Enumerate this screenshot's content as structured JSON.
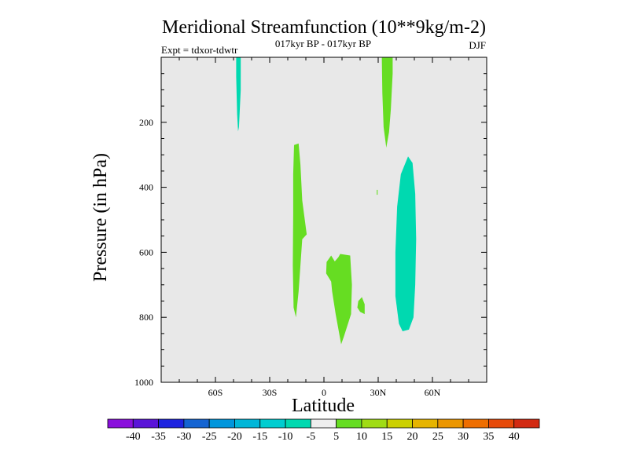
{
  "chart_data": {
    "type": "contour",
    "title": "Meridional Streamfunction (10**9kg/m-2)",
    "subtitle_center": "017kyr BP - 017kyr BP",
    "subtitle_left": "Expt = tdxor-tdwtr",
    "subtitle_right": "DJF",
    "xlabel": "Latitude",
    "ylabel": "Pressure (in hPa)",
    "xlim": [
      -90,
      90
    ],
    "ylim": [
      1000,
      0
    ],
    "x_ticks": [
      {
        "value": -60,
        "label": "60S"
      },
      {
        "value": -30,
        "label": "30S"
      },
      {
        "value": 0,
        "label": "0"
      },
      {
        "value": 30,
        "label": "30N"
      },
      {
        "value": 60,
        "label": "60N"
      }
    ],
    "y_ticks": [
      {
        "value": 200,
        "label": "200"
      },
      {
        "value": 400,
        "label": "400"
      },
      {
        "value": 600,
        "label": "600"
      },
      {
        "value": 800,
        "label": "800"
      },
      {
        "value": 1000,
        "label": "1000"
      }
    ],
    "background_color": "#e8e8e8",
    "regions": [
      {
        "level": "-10 to -5",
        "color": "#00d9b0",
        "points": [
          [
            -48.5,
            0
          ],
          [
            -46,
            0
          ],
          [
            -46,
            100
          ],
          [
            -47,
            215
          ],
          [
            -47.5,
            228
          ],
          [
            -48,
            175
          ],
          [
            -48.5,
            60
          ]
        ]
      },
      {
        "level": "5 to 10",
        "color": "#66dd22",
        "points": [
          [
            -16.5,
            270
          ],
          [
            -14,
            265
          ],
          [
            -13,
            330
          ],
          [
            -12,
            440
          ],
          [
            -9.5,
            545
          ],
          [
            -12,
            560
          ],
          [
            -13,
            640
          ],
          [
            -14,
            720
          ],
          [
            -15.5,
            800
          ],
          [
            -16.8,
            770
          ],
          [
            -17.2,
            640
          ],
          [
            -17,
            480
          ],
          [
            -17,
            360
          ]
        ]
      },
      {
        "level": "5 to 10",
        "color": "#66dd22",
        "points": [
          [
            32,
            0
          ],
          [
            38,
            0
          ],
          [
            38,
            50
          ],
          [
            37,
            160
          ],
          [
            36,
            230
          ],
          [
            34.5,
            278
          ],
          [
            33,
            215
          ],
          [
            32.3,
            110
          ]
        ]
      },
      {
        "level": "5 to 10",
        "color": "#66dd22",
        "points": [
          [
            1.5,
            630
          ],
          [
            4,
            610
          ],
          [
            6,
            628
          ],
          [
            8,
            615
          ],
          [
            9,
            605
          ],
          [
            14.5,
            610
          ],
          [
            15.5,
            700
          ],
          [
            15,
            790
          ],
          [
            11,
            860
          ],
          [
            9.5,
            883
          ],
          [
            6.5,
            790
          ],
          [
            4.5,
            720
          ],
          [
            4,
            690
          ],
          [
            1.2,
            665
          ]
        ]
      },
      {
        "level": "5 to 10",
        "color": "#66dd22",
        "points": [
          [
            19,
            750
          ],
          [
            21,
            738
          ],
          [
            22.5,
            760
          ],
          [
            22.5,
            790
          ],
          [
            20,
            783
          ],
          [
            18.5,
            770
          ]
        ]
      },
      {
        "level": "5 to 10",
        "color": "#66dd22",
        "points": [
          [
            29.2,
            408
          ],
          [
            29.7,
            408
          ],
          [
            29.7,
            423
          ],
          [
            29.2,
            423
          ]
        ]
      },
      {
        "level": "-10 to -5",
        "color": "#00d9b0",
        "points": [
          [
            46.5,
            305
          ],
          [
            49,
            325
          ],
          [
            50.5,
            420
          ],
          [
            51,
            560
          ],
          [
            50.5,
            700
          ],
          [
            49.5,
            800
          ],
          [
            47,
            838
          ],
          [
            43.5,
            843
          ],
          [
            41.5,
            820
          ],
          [
            39.5,
            735
          ],
          [
            39.5,
            600
          ],
          [
            40.5,
            460
          ],
          [
            42.5,
            360
          ]
        ]
      }
    ],
    "colorbar": {
      "labels": [
        "-40",
        "-35",
        "-30",
        "-25",
        "-20",
        "-15",
        "-10",
        "-5",
        "5",
        "10",
        "15",
        "20",
        "25",
        "30",
        "35",
        "40"
      ],
      "colors": [
        "#8a0fdc",
        "#5a14d8",
        "#1e23e0",
        "#1464d2",
        "#0096dc",
        "#00b6d8",
        "#00cdd0",
        "#00d9b0",
        "#eeeeee",
        "#66dd22",
        "#a0dc14",
        "#ccd000",
        "#e6b400",
        "#eb9600",
        "#ee6e00",
        "#e64a0a",
        "#d22a12"
      ]
    }
  }
}
